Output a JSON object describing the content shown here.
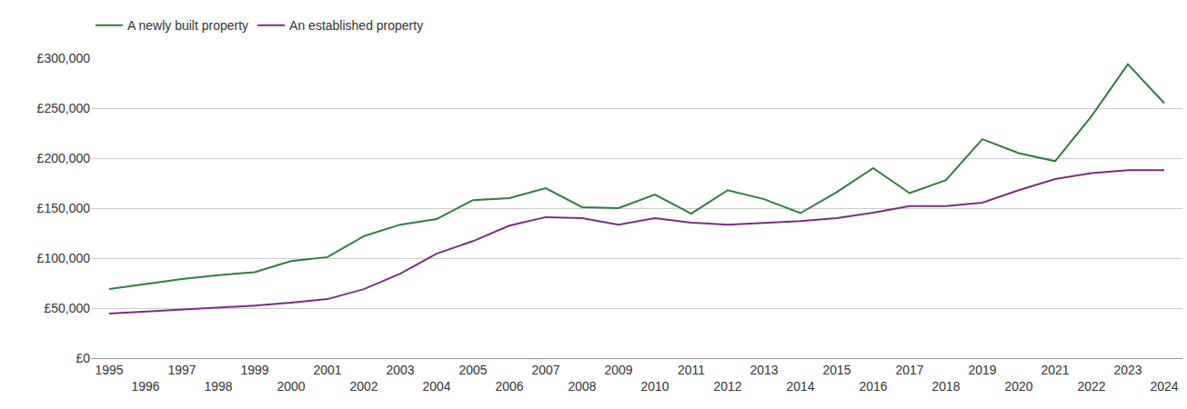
{
  "chart_data": {
    "type": "line",
    "x": [
      1995,
      1996,
      1997,
      1998,
      1999,
      2000,
      2001,
      2002,
      2003,
      2004,
      2005,
      2006,
      2007,
      2008,
      2009,
      2010,
      2011,
      2012,
      2013,
      2014,
      2015,
      2016,
      2017,
      2018,
      2019,
      2020,
      2021,
      2022,
      2023,
      2024
    ],
    "series": [
      {
        "name": "A newly built property",
        "color": "#2e7d3c",
        "values": [
          69000,
          74000,
          79000,
          83000,
          86000,
          97000,
          101000,
          122000,
          133500,
          139000,
          158000,
          160000,
          170000,
          151000,
          150000,
          163500,
          144500,
          168000,
          159000,
          145000,
          166000,
          190000,
          165000,
          178000,
          219000,
          205000,
          197000,
          242000,
          294000,
          255000
        ]
      },
      {
        "name": "An established property",
        "color": "#7b2d83",
        "values": [
          44500,
          46500,
          48500,
          51000,
          52500,
          55500,
          59000,
          69000,
          84500,
          104500,
          117000,
          132500,
          141000,
          140000,
          133500,
          140000,
          135500,
          133500,
          135000,
          137000,
          140000,
          145500,
          152000,
          152000,
          155500,
          168000,
          179000,
          185000,
          188000,
          188000
        ]
      }
    ],
    "xlim": [
      1994.5,
      2024.5
    ],
    "xticks": [
      1995,
      1996,
      1997,
      1998,
      1999,
      2000,
      2001,
      2002,
      2003,
      2004,
      2005,
      2006,
      2007,
      2008,
      2009,
      2010,
      2011,
      2012,
      2013,
      2014,
      2015,
      2016,
      2017,
      2018,
      2019,
      2020,
      2021,
      2022,
      2023,
      2024
    ],
    "ylim": [
      0,
      300000
    ],
    "yticks": [
      {
        "value": 0,
        "label": "£0"
      },
      {
        "value": 50000,
        "label": "£50,000"
      },
      {
        "value": 100000,
        "label": "£100,000"
      },
      {
        "value": 150000,
        "label": "£150,000"
      },
      {
        "value": 200000,
        "label": "£200,000"
      },
      {
        "value": 250000,
        "label": "£250,000"
      },
      {
        "value": 300000,
        "label": "£300,000"
      }
    ],
    "grid": true,
    "legend": "top left"
  }
}
